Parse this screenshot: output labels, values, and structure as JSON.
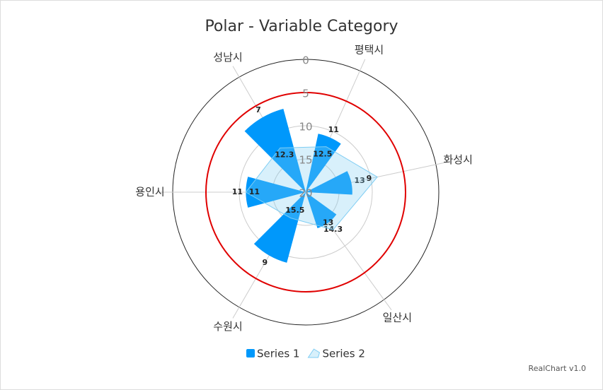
{
  "chart_data": {
    "type": "polar",
    "title": "Polar - Variable Category",
    "categories": [
      "평택시",
      "화성시",
      "일산시",
      "수원시",
      "용인시",
      "성남시"
    ],
    "category_widths": [
      48,
      60,
      72,
      60,
      60,
      60
    ],
    "ylim": [
      0,
      20
    ],
    "yticks": [
      0,
      5,
      10,
      15,
      20
    ],
    "reversed": true,
    "grid": true,
    "guide": {
      "value": 5,
      "color": "#e00000"
    },
    "series": [
      {
        "name": "Series 1",
        "type": "bar",
        "color": "#0098fb",
        "values": [
          11,
          13,
          14.3,
          9,
          11,
          7
        ]
      },
      {
        "name": "Series 2",
        "type": "area",
        "color": "#7fcdf3",
        "values": [
          12.5,
          9,
          13,
          15.5,
          11,
          12.3
        ]
      }
    ],
    "legend": "bottom",
    "credit": "RealChart v1.0"
  }
}
